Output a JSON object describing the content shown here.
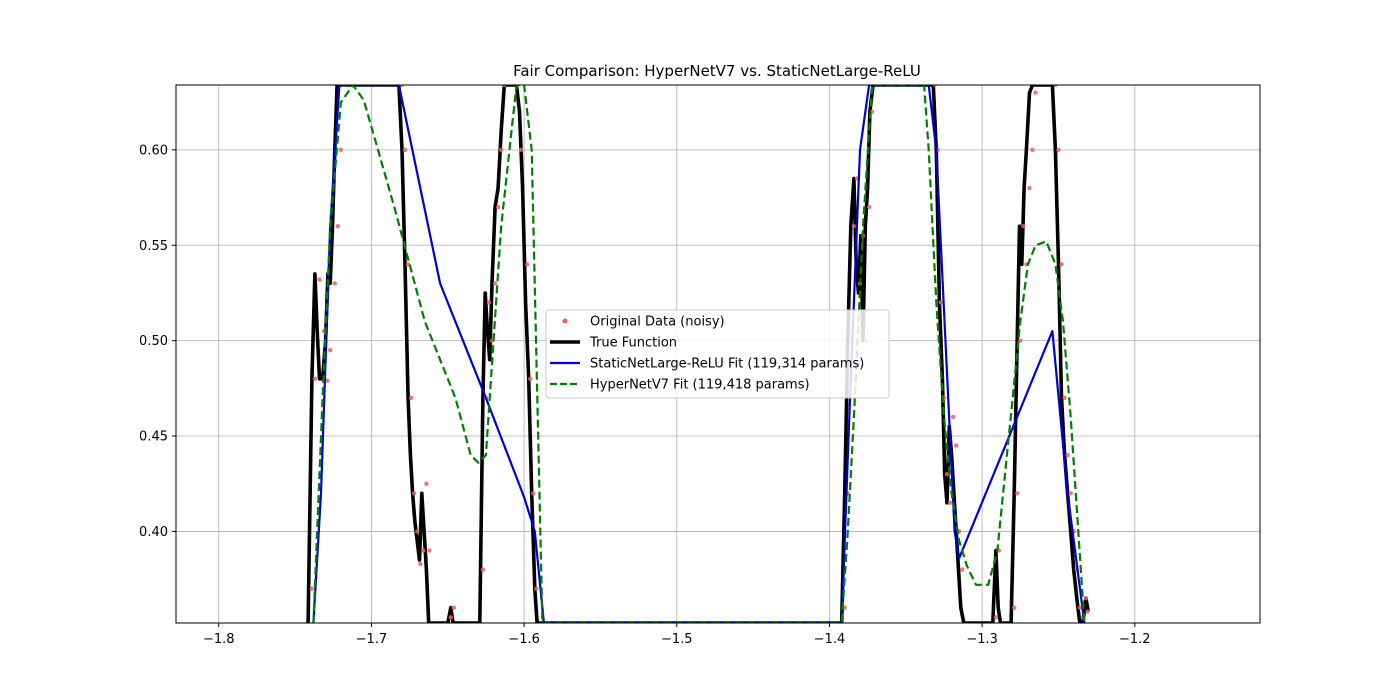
{
  "chart_data": {
    "type": "line",
    "title": "Fair Comparison: HyperNetV7 vs. StaticNetLarge-ReLU",
    "xlabel": "",
    "ylabel": "",
    "xlim": [
      -1.828,
      -1.118
    ],
    "ylim": [
      0.352,
      0.634
    ],
    "xticks": [
      -1.8,
      -1.7,
      -1.6,
      -1.5,
      -1.4,
      -1.3,
      -1.2
    ],
    "xtick_labels": [
      "−1.8",
      "−1.7",
      "−1.6",
      "−1.5",
      "−1.4",
      "−1.3",
      "−1.2"
    ],
    "yticks": [
      0.4,
      0.45,
      0.5,
      0.55,
      0.6
    ],
    "ytick_labels": [
      "0.40",
      "0.45",
      "0.50",
      "0.55",
      "0.60"
    ],
    "grid": true,
    "legend_position": "center",
    "series": [
      {
        "name": "Original Data (noisy)",
        "style": "scatter",
        "color": "#f0605a",
        "x": [
          -1.739,
          -1.737,
          -1.734,
          -1.731,
          -1.729,
          -1.727,
          -1.724,
          -1.722,
          -1.72,
          -1.718,
          -1.68,
          -1.678,
          -1.676,
          -1.674,
          -1.672,
          -1.67,
          -1.668,
          -1.666,
          -1.664,
          -1.662,
          -1.648,
          -1.646,
          -1.627,
          -1.625,
          -1.623,
          -1.621,
          -1.619,
          -1.617,
          -1.615,
          -1.613,
          -1.604,
          -1.602,
          -1.598,
          -1.596,
          -1.594,
          -1.592,
          -1.39,
          -1.388,
          -1.386,
          -1.384,
          -1.382,
          -1.38,
          -1.378,
          -1.376,
          -1.374,
          -1.372,
          -1.331,
          -1.329,
          -1.327,
          -1.325,
          -1.323,
          -1.321,
          -1.319,
          -1.317,
          -1.315,
          -1.313,
          -1.291,
          -1.289,
          -1.279,
          -1.277,
          -1.275,
          -1.273,
          -1.271,
          -1.269,
          -1.267,
          -1.265,
          -1.252,
          -1.25,
          -1.248,
          -1.246,
          -1.244,
          -1.242,
          -1.24,
          -1.238,
          -1.236,
          -1.234,
          -1.232,
          -1.231
        ],
        "y": [
          0.37,
          0.48,
          0.532,
          0.505,
          0.479,
          0.495,
          0.53,
          0.56,
          0.6,
          0.634,
          0.634,
          0.6,
          0.54,
          0.47,
          0.42,
          0.4,
          0.383,
          0.39,
          0.425,
          0.39,
          0.355,
          0.36,
          0.38,
          0.47,
          0.52,
          0.5,
          0.53,
          0.57,
          0.6,
          0.634,
          0.634,
          0.6,
          0.54,
          0.48,
          0.42,
          0.37,
          0.36,
          0.42,
          0.5,
          0.56,
          0.585,
          0.53,
          0.555,
          0.5,
          0.57,
          0.62,
          0.634,
          0.6,
          0.52,
          0.47,
          0.43,
          0.415,
          0.46,
          0.445,
          0.4,
          0.38,
          0.355,
          0.39,
          0.36,
          0.42,
          0.5,
          0.56,
          0.54,
          0.58,
          0.6,
          0.63,
          0.634,
          0.6,
          0.54,
          0.47,
          0.44,
          0.42,
          0.4,
          0.38,
          0.36,
          0.355,
          0.365,
          0.358
        ]
      },
      {
        "name": "True Function",
        "style": "solid",
        "color": "#000000",
        "x": [
          -1.7415,
          -1.739,
          -1.737,
          -1.7355,
          -1.734,
          -1.732,
          -1.73,
          -1.7285,
          -1.727,
          -1.7255,
          -1.724,
          -1.7225,
          -1.7205,
          -1.7185,
          -1.7165,
          -1.682,
          -1.68,
          -1.678,
          -1.676,
          -1.6745,
          -1.673,
          -1.6715,
          -1.67,
          -1.6685,
          -1.667,
          -1.6655,
          -1.664,
          -1.6625,
          -1.6605,
          -1.6585,
          -1.65,
          -1.648,
          -1.6465,
          -1.645,
          -1.643,
          -1.629,
          -1.627,
          -1.6255,
          -1.624,
          -1.6225,
          -1.621,
          -1.619,
          -1.617,
          -1.615,
          -1.613,
          -1.611,
          -1.605,
          -1.603,
          -1.601,
          -1.599,
          -1.597,
          -1.595,
          -1.593,
          -1.5915,
          -1.392,
          -1.39,
          -1.388,
          -1.386,
          -1.384,
          -1.3825,
          -1.381,
          -1.3795,
          -1.378,
          -1.3765,
          -1.375,
          -1.3735,
          -1.3715,
          -1.37,
          -1.332,
          -1.33,
          -1.328,
          -1.326,
          -1.3245,
          -1.323,
          -1.3215,
          -1.32,
          -1.3185,
          -1.317,
          -1.3155,
          -1.314,
          -1.312,
          -1.31,
          -1.293,
          -1.291,
          -1.2895,
          -1.288,
          -1.281,
          -1.279,
          -1.277,
          -1.2755,
          -1.274,
          -1.2725,
          -1.271,
          -1.269,
          -1.267,
          -1.265,
          -1.263,
          -1.254,
          -1.252,
          -1.25,
          -1.248,
          -1.246,
          -1.244,
          -1.242,
          -1.24,
          -1.238,
          -1.236,
          -1.234,
          -1.232,
          -1.2305
        ],
        "y": [
          0.352,
          0.48,
          0.535,
          0.505,
          0.48,
          0.48,
          0.5,
          0.535,
          0.53,
          0.56,
          0.6,
          0.634,
          0.634,
          0.634,
          0.634,
          0.634,
          0.6,
          0.54,
          0.47,
          0.44,
          0.42,
          0.405,
          0.395,
          0.385,
          0.42,
          0.4,
          0.38,
          0.352,
          0.352,
          0.352,
          0.352,
          0.36,
          0.352,
          0.352,
          0.352,
          0.352,
          0.47,
          0.525,
          0.505,
          0.49,
          0.53,
          0.57,
          0.58,
          0.61,
          0.634,
          0.634,
          0.634,
          0.62,
          0.58,
          0.52,
          0.48,
          0.42,
          0.37,
          0.352,
          0.352,
          0.42,
          0.5,
          0.56,
          0.585,
          0.54,
          0.525,
          0.555,
          0.5,
          0.56,
          0.58,
          0.62,
          0.634,
          0.634,
          0.634,
          0.6,
          0.52,
          0.48,
          0.43,
          0.415,
          0.455,
          0.44,
          0.42,
          0.4,
          0.38,
          0.36,
          0.352,
          0.352,
          0.352,
          0.39,
          0.36,
          0.352,
          0.352,
          0.42,
          0.5,
          0.56,
          0.54,
          0.58,
          0.6,
          0.63,
          0.634,
          0.634,
          0.634,
          0.634,
          0.6,
          0.54,
          0.47,
          0.44,
          0.42,
          0.4,
          0.38,
          0.365,
          0.352,
          0.352,
          0.365,
          0.358
        ]
      },
      {
        "name": "StaticNetLarge-ReLU Fit (119,314 params)",
        "style": "solid",
        "color": "#0000dd",
        "x": [
          -1.738,
          -1.733,
          -1.727,
          -1.721,
          -1.682,
          -1.655,
          -1.625,
          -1.6,
          -1.593,
          -1.587,
          -1.392,
          -1.387,
          -1.38,
          -1.374,
          -1.335,
          -1.33,
          -1.318,
          -1.315,
          -1.254,
          -1.244,
          -1.233
        ],
        "y": [
          0.352,
          0.42,
          0.56,
          0.634,
          0.634,
          0.53,
          0.47,
          0.418,
          0.4,
          0.352,
          0.352,
          0.46,
          0.6,
          0.634,
          0.634,
          0.6,
          0.4,
          0.386,
          0.505,
          0.42,
          0.352
        ]
      },
      {
        "name": "HyperNetV7 Fit (119,418 params)",
        "style": "dashed",
        "color": "#008000",
        "x": [
          -1.738,
          -1.732,
          -1.727,
          -1.72,
          -1.712,
          -1.705,
          -1.695,
          -1.685,
          -1.675,
          -1.665,
          -1.655,
          -1.645,
          -1.635,
          -1.63,
          -1.625,
          -1.615,
          -1.605,
          -1.6,
          -1.595,
          -1.588,
          -1.392,
          -1.388,
          -1.384,
          -1.378,
          -1.372,
          -1.338,
          -1.335,
          -1.33,
          -1.325,
          -1.32,
          -1.315,
          -1.31,
          -1.304,
          -1.296,
          -1.29,
          -1.285,
          -1.28,
          -1.275,
          -1.27,
          -1.265,
          -1.258,
          -1.252,
          -1.247,
          -1.242,
          -1.237,
          -1.233
        ],
        "y": [
          0.352,
          0.47,
          0.56,
          0.625,
          0.634,
          0.626,
          0.598,
          0.57,
          0.54,
          0.51,
          0.49,
          0.47,
          0.44,
          0.436,
          0.44,
          0.56,
          0.634,
          0.634,
          0.6,
          0.352,
          0.352,
          0.4,
          0.46,
          0.56,
          0.634,
          0.634,
          0.6,
          0.52,
          0.46,
          0.42,
          0.395,
          0.382,
          0.372,
          0.372,
          0.39,
          0.43,
          0.47,
          0.51,
          0.54,
          0.55,
          0.552,
          0.54,
          0.51,
          0.46,
          0.4,
          0.352
        ]
      }
    ]
  }
}
